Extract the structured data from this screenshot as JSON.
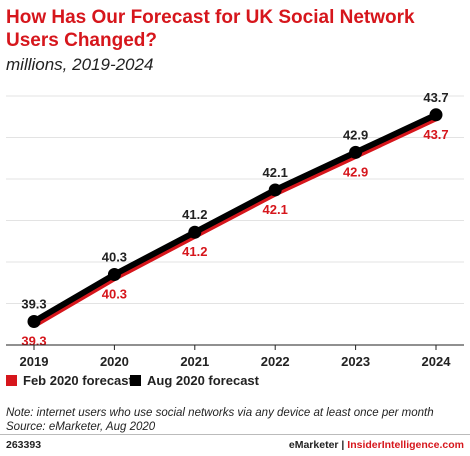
{
  "header": {
    "title": "How Has Our Forecast for UK Social Network Users Changed?",
    "subtitle": "millions, 2019-2024"
  },
  "chart_data": {
    "type": "line",
    "categories": [
      "2019",
      "2020",
      "2021",
      "2022",
      "2023",
      "2024"
    ],
    "series": [
      {
        "name": "Feb 2020 forecast",
        "values": [
          39.3,
          40.3,
          41.2,
          42.1,
          42.9,
          43.7
        ],
        "color": "#d6161c"
      },
      {
        "name": "Aug 2020 forecast",
        "values": [
          39.3,
          40.3,
          41.2,
          42.1,
          42.9,
          43.7
        ],
        "color": "#000000"
      }
    ],
    "labels_above": [
      "39.3",
      "40.3",
      "41.2",
      "42.1",
      "42.9",
      "43.7"
    ],
    "labels_below": [
      "39.3",
      "40.3",
      "41.2",
      "42.1",
      "42.9",
      "43.7"
    ],
    "ylim": [
      38.8,
      44.1
    ],
    "legend_placement": "bottom-left"
  },
  "legend": {
    "items": [
      {
        "label": "Feb 2020 forecast",
        "color": "#d6161c"
      },
      {
        "label": "Aug 2020 forecast",
        "color": "#000000"
      }
    ]
  },
  "notes": {
    "note": "Note: internet users who use social networks via any device at least once per month",
    "source": "Source: eMarketer, Aug 2020"
  },
  "footer": {
    "id": "263393",
    "brand_emarketer": "eMarketer",
    "separator": "|",
    "brand_ii": "InsiderIntelligence.com"
  }
}
